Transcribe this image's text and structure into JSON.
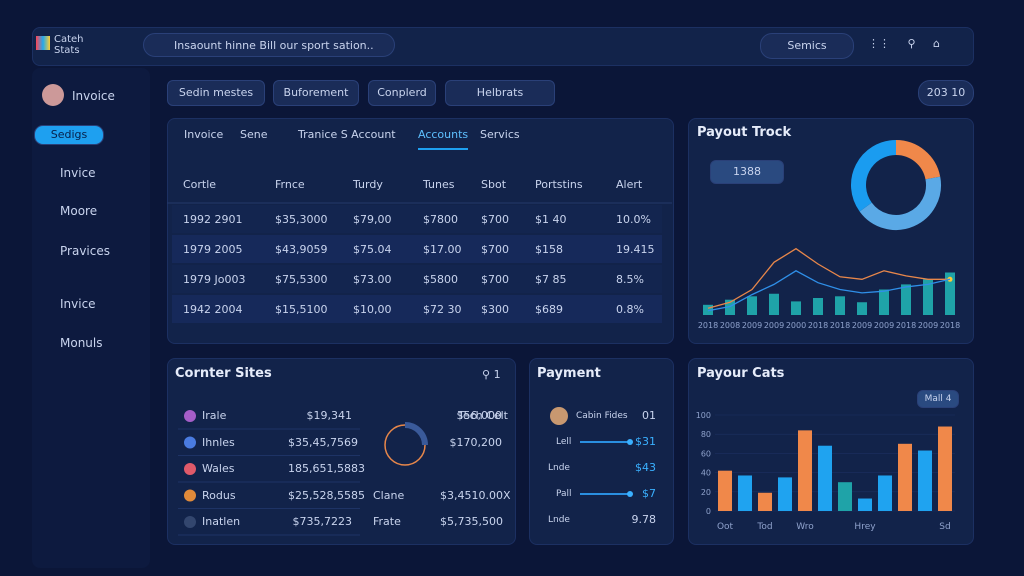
{
  "topbar": {
    "logo": [
      "Cateh",
      "Stats"
    ],
    "search": "Insaount hinne Bill our sport sation..",
    "button": "Semics"
  },
  "sidebar": {
    "profile": "Invoice",
    "button": "Sedigs",
    "items": [
      "Invice",
      "Moore",
      "Pravices",
      "Invice",
      "Monuls"
    ]
  },
  "filters": {
    "chips": [
      "Sedin mestes",
      "Buforement",
      "Conplerd",
      "Helbrats"
    ],
    "counter": "203 10"
  },
  "table": {
    "tabs": [
      "Invoice",
      "Sene",
      "Tranice S Account",
      "Accounts",
      "Servics"
    ],
    "header": [
      "Cortle",
      "Frnce",
      "Turdy",
      "Tunes",
      "Sbot",
      "Portstins",
      "Alert"
    ],
    "rows": [
      [
        "1992 2901",
        "$35,3000",
        "$79,00",
        "$7800",
        "$700",
        "$1 40",
        "10.0%"
      ],
      [
        "1979 2005",
        "$43,9059",
        "$75.04",
        "$17.00",
        "$700",
        "$158",
        "19.415"
      ],
      [
        "1979 Jo003",
        "$75,5300",
        "$73.00",
        "$5800",
        "$700",
        "$7 85",
        "8.5%"
      ],
      [
        "1942 2004",
        "$15,5100",
        "$10,00",
        "$72 30",
        "$300",
        "$689",
        "0.8%"
      ]
    ]
  },
  "payout_track": {
    "title": "Payout Trock",
    "badge": "1388"
  },
  "corner_sites": {
    "title": "Cornter Sites",
    "search": "1",
    "rows": [
      [
        "Irale",
        "$19,341"
      ],
      [
        "Ihnles",
        "$35,45,7569"
      ],
      [
        "Wales",
        "185,651,5883"
      ],
      [
        "Rodus",
        "$25,528,5585"
      ],
      [
        "Inatlen",
        "$735,7223"
      ]
    ],
    "side": [
      [
        "Tech Celt",
        "$56,000"
      ],
      [
        "",
        "$170,200"
      ],
      [
        "Clane",
        "$3,4510.00X"
      ],
      [
        "Frate",
        "$5,735,500"
      ]
    ]
  },
  "payment": {
    "title": "Payment",
    "rows": [
      [
        "Cabin Fides",
        "01"
      ],
      [
        "Lell",
        "$31"
      ],
      [
        "Lnde",
        "$43"
      ],
      [
        "Pall",
        "$7"
      ],
      [
        "Lnde",
        "9.78"
      ]
    ]
  },
  "payout_cats": {
    "title": "Payour Cats",
    "badge": "Mall 4"
  },
  "chart_data": [
    {
      "type": "donut",
      "values": [
        22,
        43,
        35
      ],
      "colors": [
        "#f0884a",
        "#5aa9e6",
        "#1a9cf0"
      ]
    },
    {
      "type": "combo",
      "categories": [
        "2018",
        "2008",
        "2009",
        "2009",
        "2000",
        "2018",
        "2018",
        "2009",
        "2009",
        "2018",
        "2009",
        "2018"
      ],
      "ylim": [
        0,
        100
      ],
      "series": [
        {
          "type": "bar",
          "color": "#1fa3a8",
          "values": [
            12,
            18,
            22,
            25,
            16,
            20,
            22,
            15,
            30,
            36,
            42,
            50
          ]
        },
        {
          "type": "line",
          "color": "#e8874a",
          "values": [
            8,
            15,
            30,
            62,
            78,
            60,
            45,
            42,
            52,
            46,
            42,
            42
          ]
        },
        {
          "type": "line",
          "color": "#2f8fe8",
          "values": [
            5,
            10,
            24,
            36,
            52,
            38,
            30,
            26,
            28,
            33,
            36,
            42
          ]
        }
      ]
    },
    {
      "type": "bar",
      "categories": [
        "Oot",
        null,
        "Tod",
        null,
        "Wro",
        null,
        null,
        "Hrey",
        null,
        null,
        null,
        "Sd"
      ],
      "values": [
        42,
        37,
        19,
        35,
        84,
        68,
        30,
        13,
        37,
        70,
        63,
        88
      ],
      "colors": [
        "#f0884a",
        "#1fa3f0",
        "#f0884a",
        "#1fa3f0",
        "#f0884a",
        "#1fa3f0",
        "#1fa3a8",
        "#1fa3f0",
        "#1fa3f0",
        "#f0884a",
        "#1fa3f0",
        "#f0884a"
      ],
      "ylim": [
        0,
        100
      ],
      "yticks": [
        0,
        20,
        40,
        60,
        80,
        100
      ]
    }
  ]
}
